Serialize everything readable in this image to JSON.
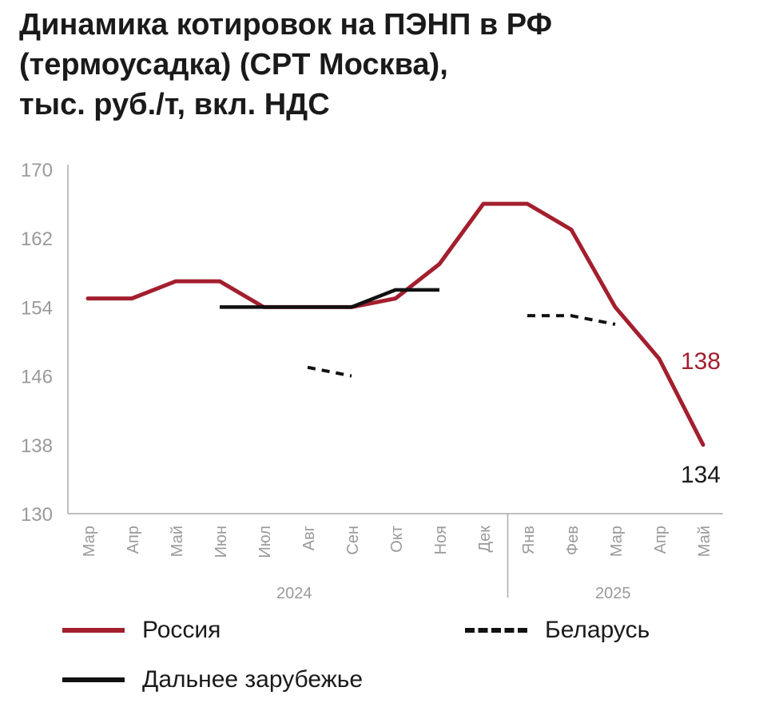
{
  "title_lines": [
    "Динамика котировок на ПЭНП в РФ",
    "(термоусадка) (CPT Москва),",
    "тыс. руб./т, вкл. НДС"
  ],
  "chart_data": {
    "type": "line",
    "title": "Динамика котировок на ПЭНП в РФ (термоусадка) (CPT Москва), тыс. руб./т, вкл. НДС",
    "categories": [
      "Мар",
      "Апр",
      "Май",
      "Июн",
      "Июл",
      "Авг",
      "Сен",
      "Окт",
      "Ноя",
      "Дек",
      "Янв",
      "Фев",
      "Мар",
      "Апр",
      "Май"
    ],
    "year_groups": [
      {
        "label": "2024",
        "from": 0,
        "to": 9
      },
      {
        "label": "2025",
        "from": 10,
        "to": 14
      }
    ],
    "ylim": [
      130,
      170
    ],
    "yticks": [
      130,
      138,
      146,
      154,
      162,
      170
    ],
    "grid": false,
    "series": [
      {
        "name": "Россия",
        "color": "#a31f2e",
        "style": "solid",
        "values": [
          155,
          155,
          157,
          157,
          154,
          154,
          154,
          155,
          159,
          166,
          166,
          163,
          154,
          148,
          138
        ]
      },
      {
        "name": "Дальнее зарубежье",
        "color": "#111111",
        "style": "solid",
        "values": [
          null,
          null,
          null,
          154,
          154,
          154,
          154,
          156,
          156,
          null,
          null,
          null,
          null,
          null,
          null
        ]
      },
      {
        "name": "Беларусь",
        "color": "#111111",
        "style": "dashed",
        "segments": [
          {
            "x": [
              5,
              6
            ],
            "y": [
              147,
              146
            ]
          },
          {
            "x": [
              10,
              11,
              12
            ],
            "y": [
              153,
              153,
              152
            ]
          }
        ]
      }
    ],
    "annotations": [
      {
        "text": "138",
        "series": "Россия",
        "color": "#a31f2e"
      },
      {
        "text": "134",
        "series": "Дальнее зарубежье",
        "color": "#1a1a1a"
      }
    ],
    "legend_placement": "bottom",
    "legend": [
      {
        "name": "Россия",
        "color": "#a31f2e",
        "style": "solid"
      },
      {
        "name": "Беларусь",
        "color": "#111111",
        "style": "dashed"
      },
      {
        "name": "Дальнее зарубежье",
        "color": "#111111",
        "style": "solid"
      }
    ]
  }
}
